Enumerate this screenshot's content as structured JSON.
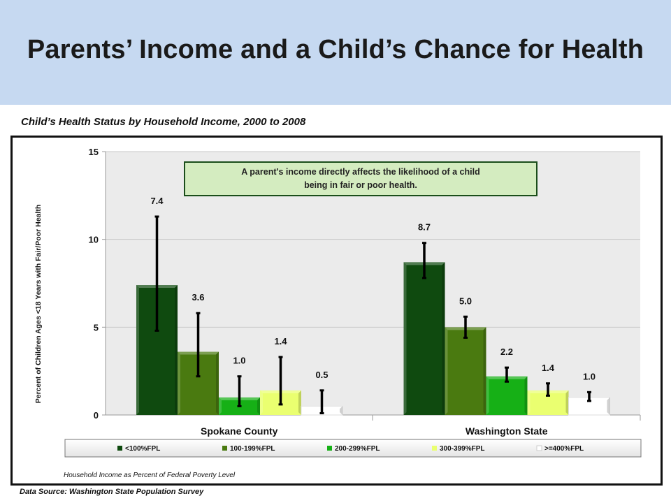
{
  "header": {
    "title": "Parents’ Income and a Child’s Chance for Health"
  },
  "footer": {
    "source": "Data Source:  Washington State Population Survey"
  },
  "chart_data": {
    "type": "bar",
    "title": "Child’s Health Status by Household Income, 2000 to 2008",
    "ylabel": "Percent of Children Ages <18 Years with Fair/Poor Health",
    "xlabel": "Household Income as Percent of Federal Poverty Level",
    "annotation": "A parent's income directly affects the likelihood of a child being in fair or poor health.",
    "annotation_lines": [
      "A parent's income directly affects the likelihood of a child",
      "being in fair or poor health."
    ],
    "categories": [
      "Spokane County",
      "Washington State"
    ],
    "ylim": [
      0,
      15
    ],
    "yticks": [
      0,
      5,
      10,
      15
    ],
    "grid": true,
    "legend_position": "bottom",
    "series": [
      {
        "name": "<100%FPL",
        "color": "#0f4a0f",
        "values": [
          7.4,
          8.7
        ],
        "labels": [
          "7.4",
          "8.7"
        ],
        "error_low": [
          4.8,
          7.8
        ],
        "error_high": [
          11.3,
          9.8
        ]
      },
      {
        "name": "100-199%FPL",
        "color": "#4a7a10",
        "values": [
          3.6,
          5.0
        ],
        "labels": [
          "3.6",
          "5.0"
        ],
        "error_low": [
          2.2,
          4.4
        ],
        "error_high": [
          5.8,
          5.6
        ]
      },
      {
        "name": "200-299%FPL",
        "color": "#16b016",
        "values": [
          1.0,
          2.2
        ],
        "labels": [
          "1.0",
          "2.2"
        ],
        "error_low": [
          0.5,
          1.9
        ],
        "error_high": [
          2.2,
          2.7
        ]
      },
      {
        "name": "300-399%FPL",
        "color": "#eaff70",
        "values": [
          1.4,
          1.4
        ],
        "labels": [
          "1.4",
          "1.4"
        ],
        "error_low": [
          0.6,
          1.1
        ],
        "error_high": [
          3.3,
          1.8
        ]
      },
      {
        "name": ">=400%FPL",
        "color": "#ffffff",
        "values": [
          0.5,
          1.0
        ],
        "labels": [
          "0.5",
          "1.0"
        ],
        "error_low": [
          0.1,
          0.8
        ],
        "error_high": [
          1.4,
          1.3
        ]
      }
    ]
  }
}
